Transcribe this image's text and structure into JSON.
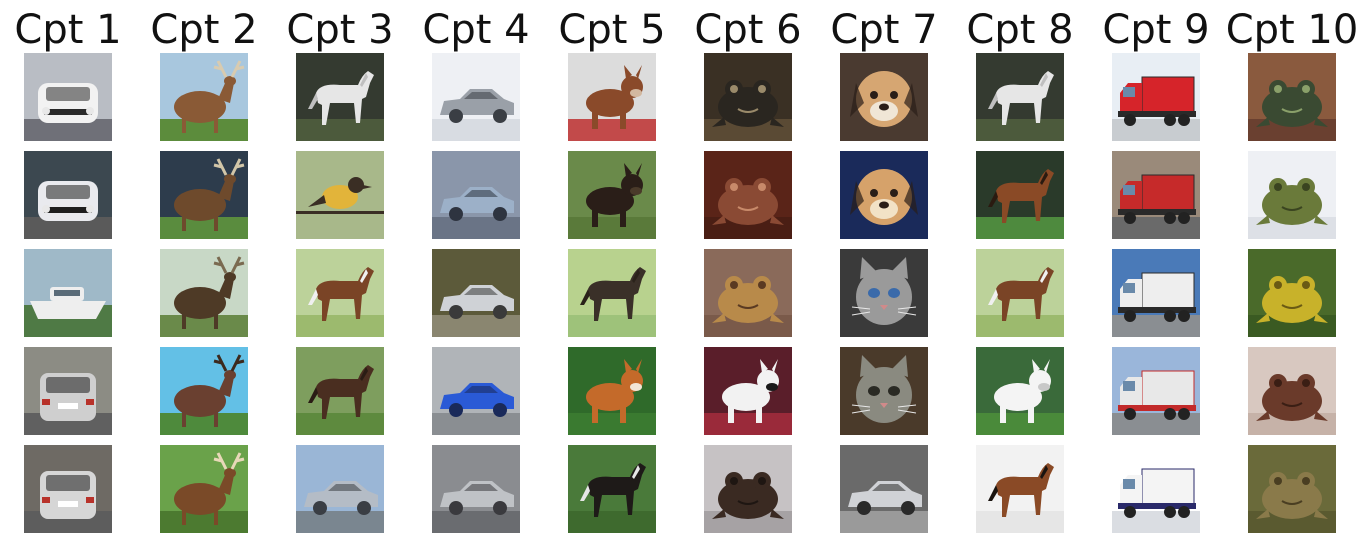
{
  "columns": [
    {
      "title": "Cpt 1",
      "images": [
        {
          "icon": "car-front-icon",
          "bg": "#b9bdc4",
          "fg": "#f2f2f2",
          "accent": "#2a2a2a",
          "ground": "#6f7078"
        },
        {
          "icon": "car-front-icon",
          "bg": "#3c4850",
          "fg": "#e9eaee",
          "accent": "#1e1e1e",
          "ground": "#5a5a5a"
        },
        {
          "icon": "boat-icon",
          "bg": "#9fb9c8",
          "fg": "#eeeeee",
          "accent": "#5a6b78",
          "ground": "#4f7a45"
        },
        {
          "icon": "car-rear-icon",
          "bg": "#8c8c84",
          "fg": "#cfcfcf",
          "accent": "#2a2a2a",
          "ground": "#606060"
        },
        {
          "icon": "car-rear-icon",
          "bg": "#6e6a64",
          "fg": "#d6d6d6",
          "accent": "#2a2a2a",
          "ground": "#5d5d5d"
        }
      ]
    },
    {
      "title": "Cpt 2",
      "images": [
        {
          "icon": "deer-icon",
          "bg": "#a8c7de",
          "fg": "#8a5a36",
          "accent": "#d8cbb0",
          "ground": "#5c8c3c"
        },
        {
          "icon": "deer-icon",
          "bg": "#2d3c4c",
          "fg": "#6e4a2c",
          "accent": "#d2c6a8",
          "ground": "#5a8c3e"
        },
        {
          "icon": "deer-icon",
          "bg": "#c8d8c6",
          "fg": "#4e3a26",
          "accent": "#7a6a50",
          "ground": "#6a8a4a"
        },
        {
          "icon": "deer-icon",
          "bg": "#63c0e6",
          "fg": "#6a4030",
          "accent": "#3c2a1e",
          "ground": "#4e8a3c"
        },
        {
          "icon": "deer-icon",
          "bg": "#6aa24a",
          "fg": "#7a4a28",
          "accent": "#e8d8b8",
          "ground": "#4c7a30"
        }
      ]
    },
    {
      "title": "Cpt 3",
      "images": [
        {
          "icon": "horse-icon",
          "bg": "#343a30",
          "fg": "#e6e6e6",
          "accent": "#bfbfbf",
          "ground": "#4c5a3c"
        },
        {
          "icon": "bird-icon",
          "bg": "#a8b88a",
          "fg": "#e2b43a",
          "accent": "#3a2e24",
          "ground": "#8a9a6e"
        },
        {
          "icon": "horse-icon",
          "bg": "#bcd29a",
          "fg": "#7a4426",
          "accent": "#f0f0f0",
          "ground": "#9cba6e"
        },
        {
          "icon": "horse-icon",
          "bg": "#7e9e5e",
          "fg": "#4a2e20",
          "accent": "#2a1c14",
          "ground": "#5e8a3e"
        },
        {
          "icon": "car-side-icon",
          "bg": "#9ab6d6",
          "fg": "#b4bcc6",
          "accent": "#3a3e44",
          "ground": "#7a8690"
        }
      ]
    },
    {
      "title": "Cpt 4",
      "images": [
        {
          "icon": "car-side-icon",
          "bg": "#eef0f4",
          "fg": "#9aa0a8",
          "accent": "#3a3e44",
          "ground": "#d8dce2"
        },
        {
          "icon": "car-side-icon",
          "bg": "#8a96aa",
          "fg": "#9cb0c8",
          "accent": "#2e3440",
          "ground": "#6a7486"
        },
        {
          "icon": "car-side-icon",
          "bg": "#5c5a3a",
          "fg": "#cfd2d6",
          "accent": "#3a3a3a",
          "ground": "#8a8670"
        },
        {
          "icon": "car-side-icon",
          "bg": "#b0b4b8",
          "fg": "#2a5ad6",
          "accent": "#1a2a5a",
          "ground": "#8a8e92"
        },
        {
          "icon": "car-side-icon",
          "bg": "#8a8c90",
          "fg": "#bfc2c6",
          "accent": "#3a3a3e",
          "ground": "#6a6c70"
        }
      ]
    },
    {
      "title": "Cpt 5",
      "images": [
        {
          "icon": "dog-icon",
          "bg": "#dcdcdc",
          "fg": "#8a4a2a",
          "accent": "#d2b8a0",
          "ground": "#c24a4a"
        },
        {
          "icon": "dog-icon",
          "bg": "#6a8a4a",
          "fg": "#2a1e18",
          "accent": "#4a3a2a",
          "ground": "#5a7a3a"
        },
        {
          "icon": "horse-icon",
          "bg": "#b8d28e",
          "fg": "#3a3028",
          "accent": "#2a221a",
          "ground": "#9ec27a"
        },
        {
          "icon": "dog-icon",
          "bg": "#2f6a2a",
          "fg": "#c46a2a",
          "accent": "#f2e6d6",
          "ground": "#3a7a30"
        },
        {
          "icon": "horse-icon",
          "bg": "#4a7a3a",
          "fg": "#1e1a18",
          "accent": "#e6e6e6",
          "ground": "#3e6a2e"
        }
      ]
    },
    {
      "title": "Cpt 6",
      "images": [
        {
          "icon": "frog-icon",
          "bg": "#3a3024",
          "fg": "#2a2620",
          "accent": "#9a8a6a",
          "ground": "#5a4a34"
        },
        {
          "icon": "frog-icon",
          "bg": "#5a2418",
          "fg": "#8a4a34",
          "accent": "#c88a6a",
          "ground": "#4a1e14"
        },
        {
          "icon": "frog-icon",
          "bg": "#8a6a5a",
          "fg": "#b88a4a",
          "accent": "#5a3a22",
          "ground": "#7a5a4a"
        },
        {
          "icon": "dog-icon",
          "bg": "#5a1e2a",
          "fg": "#f2f2f2",
          "accent": "#1a1a1a",
          "ground": "#9a2a3a"
        },
        {
          "icon": "frog-icon",
          "bg": "#c6c2c4",
          "fg": "#3a2a22",
          "accent": "#1e1612",
          "ground": "#a6a2a4"
        }
      ]
    },
    {
      "title": "Cpt 7",
      "images": [
        {
          "icon": "dog-face-icon",
          "bg": "#4a3a30",
          "fg": "#d6a672",
          "accent": "#2a1e18",
          "ground": "#f0e6d6"
        },
        {
          "icon": "dog-face-icon",
          "bg": "#1a2a5a",
          "fg": "#d6a26a",
          "accent": "#2a1e18",
          "ground": "#f2e2c6"
        },
        {
          "icon": "cat-face-icon",
          "bg": "#3a3a3a",
          "fg": "#9a9a9a",
          "accent": "#3a6aaa",
          "ground": "#6a6a6a"
        },
        {
          "icon": "cat-face-icon",
          "bg": "#4a3a2a",
          "fg": "#8a8a80",
          "accent": "#2a2a24",
          "ground": "#6a5a4a"
        },
        {
          "icon": "car-side-icon",
          "bg": "#6a6a6a",
          "fg": "#d0d2d6",
          "accent": "#2a2a2a",
          "ground": "#9a9a9a"
        }
      ]
    },
    {
      "title": "Cpt 8",
      "images": [
        {
          "icon": "horse-icon",
          "bg": "#343a30",
          "fg": "#e6e6e6",
          "accent": "#bfbfbf",
          "ground": "#4c5a3c"
        },
        {
          "icon": "horse-icon",
          "bg": "#2a3a2a",
          "fg": "#8a4a26",
          "accent": "#2a1a10",
          "ground": "#4e8a3e"
        },
        {
          "icon": "horse-icon",
          "bg": "#bcd29a",
          "fg": "#7a4426",
          "accent": "#f0f0f0",
          "ground": "#9cba6e"
        },
        {
          "icon": "dog-icon",
          "bg": "#3a6a3a",
          "fg": "#f4f4f4",
          "accent": "#c8c8c8",
          "ground": "#4a8a3a"
        },
        {
          "icon": "horse-icon",
          "bg": "#f2f2f2",
          "fg": "#8a4a26",
          "accent": "#1a1410",
          "ground": "#e6e6e6"
        }
      ]
    },
    {
      "title": "Cpt 9",
      "images": [
        {
          "icon": "truck-icon",
          "bg": "#e8eef4",
          "fg": "#d6242a",
          "accent": "#2a2a2a",
          "ground": "#c8ccd0"
        },
        {
          "icon": "truck-icon",
          "bg": "#9a8a7a",
          "fg": "#c62a2a",
          "accent": "#2a2a2a",
          "ground": "#6a6a6a"
        },
        {
          "icon": "truck-icon",
          "bg": "#4a7ab8",
          "fg": "#eeeeee",
          "accent": "#2a2a2a",
          "ground": "#8a8e92"
        },
        {
          "icon": "truck-icon",
          "bg": "#9ab6da",
          "fg": "#e8e8e8",
          "accent": "#c22a2a",
          "ground": "#8a8e92"
        },
        {
          "icon": "truck-icon",
          "bg": "#ffffff",
          "fg": "#f4f4f4",
          "accent": "#2a2a6a",
          "ground": "#dadde2"
        }
      ]
    },
    {
      "title": "Cpt 10",
      "images": [
        {
          "icon": "frog-icon",
          "bg": "#8a5a3e",
          "fg": "#3a4a32",
          "accent": "#8aa06a",
          "ground": "#6a4030"
        },
        {
          "icon": "frog-icon",
          "bg": "#eef0f4",
          "fg": "#6a7a3a",
          "accent": "#3a4420",
          "ground": "#dde0e6"
        },
        {
          "icon": "frog-icon",
          "bg": "#4a6a2a",
          "fg": "#c8b22a",
          "accent": "#6a5a14",
          "ground": "#3a5a22"
        },
        {
          "icon": "frog-icon",
          "bg": "#d8c8c0",
          "fg": "#6a3a2a",
          "accent": "#3a1e14",
          "ground": "#c6b2a8"
        },
        {
          "icon": "frog-icon",
          "bg": "#6a6a3a",
          "fg": "#8a7a4a",
          "accent": "#4a3e22",
          "ground": "#5a5a30"
        }
      ]
    }
  ]
}
